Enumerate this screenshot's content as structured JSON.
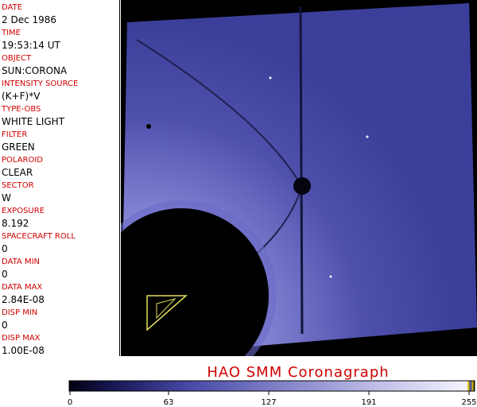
{
  "metadata": [
    {
      "label": "DATE",
      "value": "2 Dec 1986"
    },
    {
      "label": "TIME",
      "value": "19:53:14 UT"
    },
    {
      "label": "OBJECT",
      "value": "SUN:CORONA"
    },
    {
      "label": "INTENSITY SOURCE",
      "value": "(K+F)*V"
    },
    {
      "label": "TYPE-OBS",
      "value": "WHITE LIGHT"
    },
    {
      "label": "FILTER",
      "value": "GREEN"
    },
    {
      "label": "POLAROID",
      "value": "CLEAR"
    },
    {
      "label": "SECTOR",
      "value": "W"
    },
    {
      "label": "EXPOSURE",
      "value": "8.192"
    },
    {
      "label": "SPACECRAFT ROLL",
      "value": "0"
    },
    {
      "label": "DATA MIN",
      "value": "0"
    },
    {
      "label": "DATA MAX",
      "value": "2.84E-08"
    },
    {
      "label": "DISP MIN",
      "value": "0"
    },
    {
      "label": "DISP MAX",
      "value": "1.00E-08"
    }
  ],
  "title": "HAO SMM Coronagraph",
  "colorbar": {
    "range": [
      0,
      255
    ],
    "ticks": [
      0,
      63,
      127,
      191,
      255
    ]
  }
}
